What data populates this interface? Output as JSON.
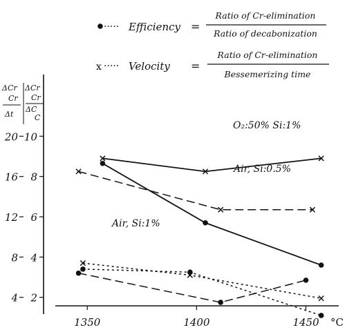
{
  "chart_data": {
    "type": "line",
    "xlim": [
      1330,
      1465
    ],
    "y_left_lim": [
      0,
      24
    ],
    "y_right_lim": [
      0,
      12
    ],
    "x_ticks": [
      {
        "value": 1350,
        "label": "1350"
      },
      {
        "value": 1400,
        "label": "1400"
      },
      {
        "value": 1450,
        "label": "1450"
      }
    ],
    "x_unit": "°C",
    "y_left_ticks": [
      {
        "value": 4,
        "label": "4"
      },
      {
        "value": 8,
        "label": "8"
      },
      {
        "value": 12,
        "label": "12"
      },
      {
        "value": 16,
        "label": "16"
      },
      {
        "value": 20,
        "label": "20"
      }
    ],
    "y_right_ticks": [
      {
        "value": 2,
        "label": "2"
      },
      {
        "value": 4,
        "label": "4"
      },
      {
        "value": 6,
        "label": "6"
      },
      {
        "value": 8,
        "label": "8"
      },
      {
        "value": 10,
        "label": "10"
      }
    ],
    "y_left_label": {
      "num_top": "ΔCr",
      "num_bottom": "Cr",
      "den": "Δt"
    },
    "y_right_label": {
      "num_top": "ΔCr",
      "num_mid": "Cr",
      "den_top": "ΔC",
      "den_bottom": "C"
    },
    "legend": [
      {
        "marker": "●",
        "dots": "·····",
        "name": "Efficiency",
        "eq": "=",
        "numerator": "Ratio of Cr-elimination",
        "denominator": "Ratio of decabonization"
      },
      {
        "marker": "x",
        "dots": "·····",
        "name": "Velocity",
        "eq": "=",
        "numerator": "Ratio of Cr-elimination",
        "denominator": "Bessemerizing time"
      }
    ],
    "series": [
      {
        "label": "O₂:50% Si:1%",
        "dash": "solid",
        "marker": "x",
        "axis": "left",
        "x": [
          1357,
          1404,
          1457
        ],
        "y": [
          17.8,
          16.5,
          17.8
        ]
      },
      {
        "label": "O₂:50% Si:1%",
        "dash": "solid",
        "marker": "dot",
        "axis": "left",
        "x": [
          1357,
          1404,
          1457
        ],
        "y": [
          17.3,
          11.4,
          7.2
        ]
      },
      {
        "label": "Air, Si:0.5%",
        "dash": "dashed",
        "marker": "x",
        "axis": "left",
        "x": [
          1346,
          1411,
          1453
        ],
        "y": [
          16.5,
          12.7,
          12.7
        ]
      },
      {
        "label": "Air, Si:1%",
        "dash": "dotted",
        "marker": "x",
        "axis": "left",
        "x": [
          1348,
          1397,
          1457
        ],
        "y": [
          7.4,
          6.2,
          3.9
        ]
      },
      {
        "label": "Air, Si:1%",
        "dash": "dashed",
        "marker": "dot",
        "axis": "left",
        "x": [
          1346,
          1411,
          1450
        ],
        "y": [
          6.4,
          3.5,
          5.7
        ]
      },
      {
        "label": "Air, Si:1%",
        "dash": "dotted",
        "marker": "dot",
        "axis": "left",
        "x": [
          1348,
          1397,
          1457
        ],
        "y": [
          6.8,
          6.5,
          2.2
        ]
      }
    ],
    "annotations": [
      {
        "text": "O₂:50% Si:1%"
      },
      {
        "text": "Air, Si:0.5%"
      },
      {
        "text": "Air, Si:1%"
      }
    ]
  }
}
